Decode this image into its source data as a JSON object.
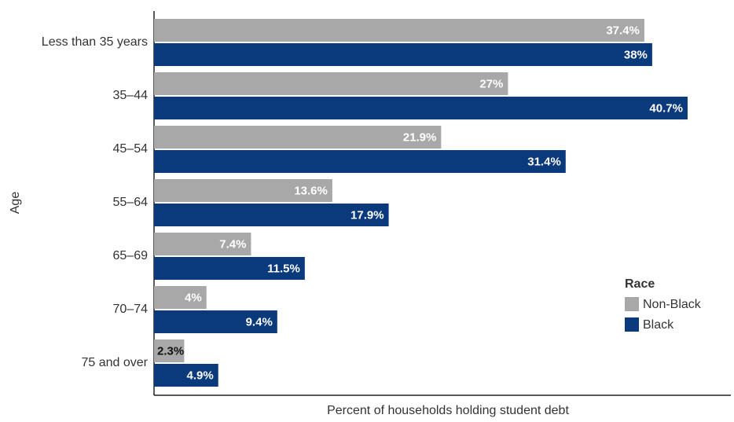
{
  "chart_data": {
    "type": "bar",
    "orientation": "horizontal",
    "categories": [
      "Less than 35 years",
      "35–44",
      "45–54",
      "55–64",
      "65–69",
      "70–74",
      "75 and over"
    ],
    "series": [
      {
        "name": "Non-Black",
        "color": "#a8a8a8",
        "values": [
          37.4,
          27,
          21.9,
          13.6,
          7.4,
          4,
          2.3
        ],
        "value_labels": [
          "37.4%",
          "27%",
          "21.9%",
          "13.6%",
          "7.4%",
          "4%",
          "2.3%"
        ]
      },
      {
        "name": "Black",
        "color": "#0b3a7c",
        "values": [
          38,
          40.7,
          31.4,
          17.9,
          11.5,
          9.4,
          4.9
        ],
        "value_labels": [
          "38%",
          "40.7%",
          "31.4%",
          "17.9%",
          "11.5%",
          "9.4%",
          "4.9%"
        ]
      }
    ],
    "xlabel": "Percent of households holding student debt",
    "ylabel": "Age",
    "legend_title": "Race",
    "legend_position": "right",
    "xlim": [
      0,
      44
    ]
  }
}
